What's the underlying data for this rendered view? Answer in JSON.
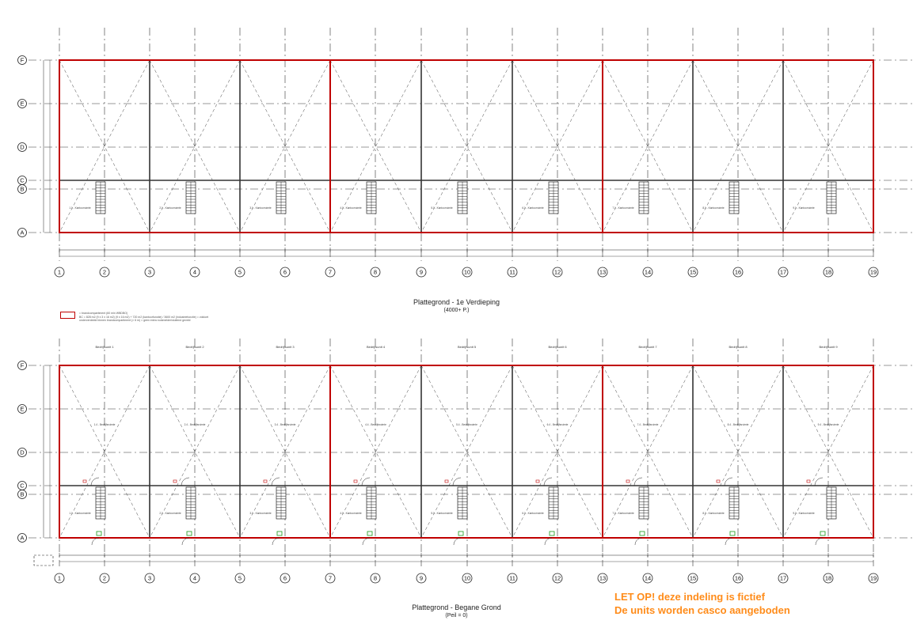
{
  "axes": {
    "rows": [
      "F",
      "E",
      "D",
      "C",
      "B",
      "A"
    ],
    "columns": [
      "1",
      "2",
      "3",
      "4",
      "5",
      "6",
      "7",
      "8",
      "9",
      "10",
      "11",
      "12",
      "13",
      "14",
      "15",
      "16",
      "17",
      "18",
      "19"
    ]
  },
  "plans": [
    {
      "id": "first-floor",
      "title": "Plattegrond - 1e Verdieping",
      "subtitle": "(4000+ P.)",
      "room_label": "Kantoorruimte"
    },
    {
      "id": "ground-floor",
      "title": "Plattegrond - Begane Grond",
      "subtitle": "(Peil = 0)",
      "room_label": "Kantoorruimte",
      "unit_label": "Bedrijfsruimte",
      "unit_headings": [
        "Bedrijfsunit 1",
        "Bedrijfsunit 2",
        "Bedrijfsunit 3",
        "Bedrijfsunit 4",
        "Bedrijfsunit 5",
        "Bedrijfsunit 6",
        "Bedrijfsunit 7",
        "Bedrijfsunit 8",
        "Bedrijfsunit 9"
      ]
    }
  ],
  "legend": {
    "line1": "= brandcompartiment (60 min WBDBO)",
    "line2": "BC = 828 m2 (9 x 3 x 16 m2) (9 x 16 m2) + 720 m2 (kantoorfunctie) / 3600 m2 (industriefunctie) = voldoet",
    "line3": "onderverdeeld binnen brandcompartiment (> 6 m) = geen extra rookmelder/sluitend geveld"
  },
  "note": {
    "line1": "LET OP! deze indeling is fictief",
    "line2": "De units worden casco aangeboden"
  },
  "colors": {
    "wall": "#c00000",
    "line": "#222222",
    "grid": "#333333",
    "note": "#ff8c1a"
  }
}
